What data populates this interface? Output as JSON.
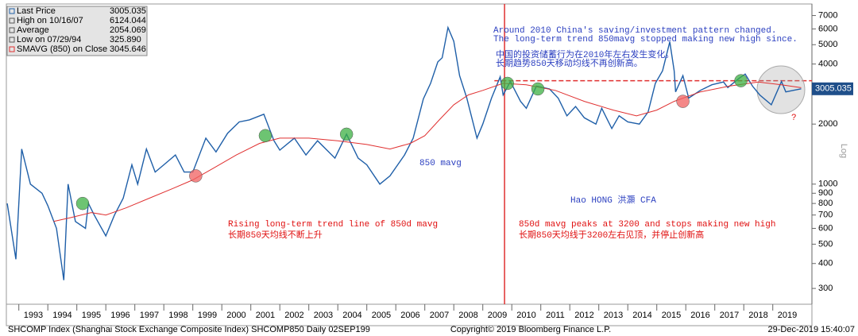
{
  "chart_data": {
    "type": "line",
    "log_scale": true,
    "legend": [
      {
        "label": "Last Price",
        "value": "3005.035"
      },
      {
        "label": "High on 10/16/07",
        "value": "6124.044"
      },
      {
        "label": "Average",
        "value": "2054.069"
      },
      {
        "label": "Low on 07/29/94",
        "value": "325.890"
      },
      {
        "label": "SMAVG (850)  on Close",
        "value": "3045.646"
      }
    ],
    "xlim": [
      1992.57,
      2020.35
    ],
    "xticks": [
      {
        "value": 1993.5,
        "label": "1993"
      },
      {
        "value": 1994.5,
        "label": "1994"
      },
      {
        "value": 1995.5,
        "label": "1995"
      },
      {
        "value": 1996.5,
        "label": "1996"
      },
      {
        "value": 1997.5,
        "label": "1997"
      },
      {
        "value": 1998.5,
        "label": "1998"
      },
      {
        "value": 1999.5,
        "label": "1999"
      },
      {
        "value": 2000.5,
        "label": "2000"
      },
      {
        "value": 2001.5,
        "label": "2001"
      },
      {
        "value": 2002.5,
        "label": "2002"
      },
      {
        "value": 2003.5,
        "label": "2003"
      },
      {
        "value": 2004.5,
        "label": "2004"
      },
      {
        "value": 2005.5,
        "label": "2005"
      },
      {
        "value": 2006.5,
        "label": "2006"
      },
      {
        "value": 2007.5,
        "label": "2007"
      },
      {
        "value": 2008.5,
        "label": "2008"
      },
      {
        "value": 2009.5,
        "label": "2009"
      },
      {
        "value": 2010.5,
        "label": "2010"
      },
      {
        "value": 2011.5,
        "label": "2011"
      },
      {
        "value": 2012.5,
        "label": "2012"
      },
      {
        "value": 2013.5,
        "label": "2013"
      },
      {
        "value": 2014.5,
        "label": "2014"
      },
      {
        "value": 2015.5,
        "label": "2015"
      },
      {
        "value": 2016.5,
        "label": "2016"
      },
      {
        "value": 2017.5,
        "label": "2017"
      },
      {
        "value": 2018.5,
        "label": "2018"
      },
      {
        "value": 2019.5,
        "label": "2019"
      }
    ],
    "ylim": [
      250,
      8000
    ],
    "yticks": [
      300,
      400,
      500,
      600,
      700,
      800,
      900,
      1000,
      2000,
      3000,
      4000,
      5000,
      6000,
      7000
    ],
    "y_label": "Log",
    "series": [
      {
        "name": "Last Price",
        "color": "#1f5fa8",
        "x": [
          1992.6,
          1992.9,
          1993.1,
          1993.4,
          1993.8,
          1994.0,
          1994.3,
          1994.55,
          1994.7,
          1994.95,
          1995.3,
          1995.4,
          1995.6,
          1996.0,
          1996.3,
          1996.6,
          1996.9,
          1997.1,
          1997.4,
          1997.7,
          1998.0,
          1998.4,
          1998.7,
          1999.0,
          1999.45,
          1999.8,
          2000.2,
          2000.6,
          2000.95,
          2001.45,
          2001.8,
          2002.0,
          2002.5,
          2002.9,
          2003.3,
          2003.9,
          2004.3,
          2004.7,
          2005.0,
          2005.45,
          2005.8,
          2006.3,
          2006.6,
          2006.95,
          2007.2,
          2007.45,
          2007.6,
          2007.8,
          2008.0,
          2008.2,
          2008.45,
          2008.8,
          2009.0,
          2009.3,
          2009.6,
          2009.7,
          2009.95,
          2010.3,
          2010.5,
          2010.85,
          2011.3,
          2011.6,
          2011.9,
          2012.2,
          2012.5,
          2012.9,
          2013.1,
          2013.45,
          2013.7,
          2014.0,
          2014.4,
          2014.7,
          2014.95,
          2015.2,
          2015.45,
          2015.6,
          2015.65,
          2015.9,
          2016.1,
          2016.5,
          2016.9,
          2017.3,
          2017.45,
          2017.85,
          2018.05,
          2018.3,
          2018.55,
          2018.95,
          2019.3,
          2019.45,
          2019.7,
          2019.98
        ],
        "values": [
          800,
          420,
          1500,
          1000,
          900,
          780,
          600,
          330,
          1000,
          650,
          600,
          800,
          700,
          550,
          700,
          850,
          1250,
          1000,
          1500,
          1150,
          1250,
          1400,
          1150,
          1150,
          1700,
          1450,
          1800,
          2050,
          2100,
          2240,
          1650,
          1480,
          1700,
          1400,
          1650,
          1350,
          1780,
          1350,
          1250,
          1000,
          1100,
          1400,
          1700,
          2675,
          3200,
          4100,
          4300,
          6100,
          5200,
          3500,
          2700,
          1700,
          2000,
          2700,
          3450,
          2800,
          3270,
          2600,
          2400,
          3100,
          3000,
          2700,
          2200,
          2450,
          2150,
          2000,
          2400,
          1900,
          2200,
          2050,
          2000,
          2300,
          3200,
          3700,
          5170,
          3700,
          2900,
          3500,
          2700,
          2950,
          3150,
          3250,
          3050,
          3400,
          3560,
          3100,
          2800,
          2500,
          3270,
          2900,
          2950,
          3005
        ]
      },
      {
        "name": "850 mavg",
        "color": "#e03030",
        "x": [
          1994.2,
          1994.8,
          1995.5,
          1996.0,
          1996.7,
          1997.5,
          1998.3,
          1999.0,
          1999.7,
          2000.5,
          2001.3,
          2002.0,
          2003.0,
          2004.0,
          2005.0,
          2005.8,
          2006.5,
          2007.0,
          2007.5,
          2008.0,
          2008.5,
          2009.0,
          2009.7,
          2010.5,
          2011.5,
          2012.5,
          2013.5,
          2014.3,
          2015.0,
          2015.6,
          2016.5,
          2017.5,
          2018.5,
          2019.3,
          2019.98
        ],
        "values": [
          650,
          680,
          720,
          700,
          760,
          850,
          950,
          1050,
          1200,
          1400,
          1600,
          1700,
          1700,
          1650,
          1580,
          1500,
          1600,
          1750,
          2100,
          2500,
          2800,
          2950,
          3200,
          3150,
          2950,
          2600,
          2350,
          2200,
          2350,
          2600,
          2900,
          3100,
          3250,
          3150,
          3045
        ]
      }
    ],
    "markers": [
      {
        "x": 1995.2,
        "y": 800,
        "color": "#3cb043"
      },
      {
        "x": 1999.1,
        "y": 1100,
        "color": "#f06060"
      },
      {
        "x": 2001.5,
        "y": 1750,
        "color": "#3cb043"
      },
      {
        "x": 2004.3,
        "y": 1780,
        "color": "#3cb043"
      },
      {
        "x": 2009.85,
        "y": 3200,
        "color": "#3cb043"
      },
      {
        "x": 2010.9,
        "y": 3000,
        "color": "#3cb043"
      },
      {
        "x": 2015.9,
        "y": 2600,
        "color": "#f06060"
      },
      {
        "x": 2017.9,
        "y": 3300,
        "color": "#3cb043"
      }
    ],
    "hline": {
      "y": 3300,
      "x": [
        2009.4,
        2020.35
      ],
      "color": "#e03030"
    },
    "vline": {
      "x": 2009.75,
      "color": "#e03030"
    },
    "annotations": {
      "en1": "Around 2010 China's saving/investment pattern changed.",
      "en2": "The long-term trend 850mavg stopped making new high since.",
      "cn1": "中国的投资储蓄行为在2010年左右发生变化。",
      "cn2": "长期趋势850天移动均线不再创新高。",
      "mavg": "850 mavg",
      "author": "Hao HONG 洪灝 CFA",
      "rise_en": "Rising long-term trend line of 850d mavg",
      "rise_cn": "长期850天均线不断上升",
      "peak_en": "850d mavg peaks at 3200 and stops making new high",
      "peak_cn": "长期850天均线于3200左右见顶，并停止创新高",
      "question": "?"
    },
    "footer": {
      "left": "SHCOMP Index (Shanghai Stock Exchange Composite Index) SHCOMP850  Daily 02SEP199",
      "center": "Copyright© 2019 Bloomberg Finance L.P.",
      "right": "29-Dec-2019 15:40:07"
    }
  }
}
